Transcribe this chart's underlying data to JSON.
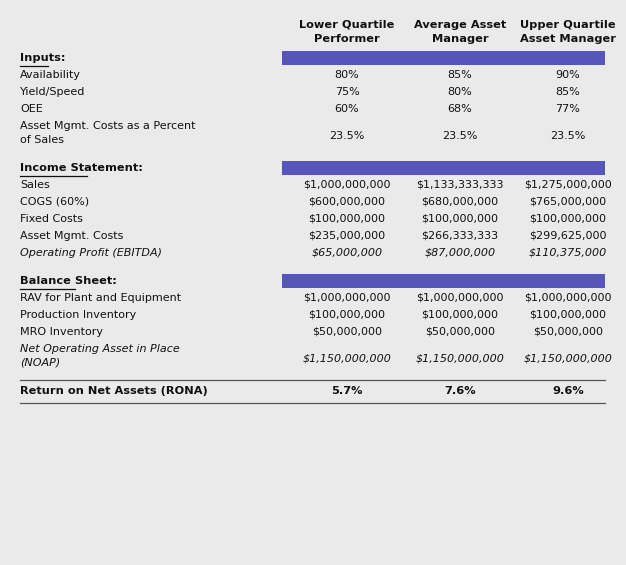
{
  "bg_color": "#eaeaea",
  "header_bg": "#5555bb",
  "col_headers": [
    "Lower Quartile\nPerformer",
    "Average Asset\nManager",
    "Upper Quartile\nAsset Manager"
  ],
  "sections": [
    {
      "label": "Inputs:",
      "rows": [
        {
          "label": "Availability",
          "values": [
            "80%",
            "85%",
            "90%"
          ],
          "italic": false
        },
        {
          "label": "Yield/Speed",
          "values": [
            "75%",
            "80%",
            "85%"
          ],
          "italic": false
        },
        {
          "label": "OEE",
          "values": [
            "60%",
            "68%",
            "77%"
          ],
          "italic": false
        },
        {
          "label": "Asset Mgmt. Costs as a Percent\nof Sales",
          "values": [
            "23.5%",
            "23.5%",
            "23.5%"
          ],
          "italic": false
        }
      ]
    },
    {
      "label": "Income Statement:",
      "rows": [
        {
          "label": "Sales",
          "values": [
            "$1,000,000,000",
            "$1,133,333,333",
            "$1,275,000,000"
          ],
          "italic": false
        },
        {
          "label": "COGS (60%)",
          "values": [
            "$600,000,000",
            "$680,000,000",
            "$765,000,000"
          ],
          "italic": false
        },
        {
          "label": "Fixed Costs",
          "values": [
            "$100,000,000",
            "$100,000,000",
            "$100,000,000"
          ],
          "italic": false
        },
        {
          "label": "Asset Mgmt. Costs",
          "values": [
            "$235,000,000",
            "$266,333,333",
            "$299,625,000"
          ],
          "italic": false
        },
        {
          "label": "Operating Profit (EBITDA)",
          "values": [
            "$65,000,000",
            "$87,000,000",
            "$110,375,000"
          ],
          "italic": true
        }
      ]
    },
    {
      "label": "Balance Sheet:",
      "rows": [
        {
          "label": "RAV for Plant and Equipment",
          "values": [
            "$1,000,000,000",
            "$1,000,000,000",
            "$1,000,000,000"
          ],
          "italic": false
        },
        {
          "label": "Production Inventory",
          "values": [
            "$100,000,000",
            "$100,000,000",
            "$100,000,000"
          ],
          "italic": false
        },
        {
          "label": "MRO Inventory",
          "values": [
            "$50,000,000",
            "$50,000,000",
            "$50,000,000"
          ],
          "italic": false
        },
        {
          "label": "Net Operating Asset in Place\n(NOAP)",
          "values": [
            "$1,150,000,000",
            "$1,150,000,000",
            "$1,150,000,000"
          ],
          "italic": true
        }
      ]
    }
  ],
  "footer": {
    "label": "Return on Net Assets (RONA)",
    "values": [
      "5.7%",
      "7.6%",
      "9.6%"
    ]
  },
  "text_color": "#111111"
}
